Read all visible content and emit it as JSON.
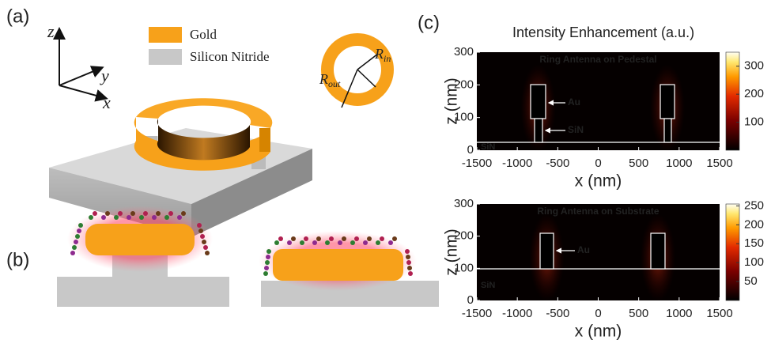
{
  "panels": {
    "a": {
      "label": "(a)",
      "axes": {
        "z": "z",
        "y": "y",
        "x": "x"
      },
      "legend": [
        {
          "name": "Gold",
          "color": "#f7a11a"
        },
        {
          "name": "Silicon Nitride",
          "color": "#c8c8c8"
        }
      ],
      "r_in": {
        "symbol": "R",
        "subscript": "in"
      },
      "r_out": {
        "symbol": "R",
        "subscript": "out"
      }
    },
    "b": {
      "label": "(b)"
    },
    "c": {
      "label": "(c)",
      "title": "Intensity Enhancement (a.u.)",
      "plots": [
        {
          "annotation": "Ring Antenna on Pedestal",
          "xlabel": "x (nm)",
          "ylabel": "z (nm)",
          "xlim": [
            -1500,
            1500
          ],
          "xticks": [
            -1500,
            -1000,
            -500,
            0,
            500,
            1000,
            1500
          ],
          "ylim": [
            0,
            300
          ],
          "yticks": [
            0,
            100,
            200,
            300
          ],
          "colorbar": {
            "lim": [
              0,
              350
            ],
            "ticks": [
              100,
              200,
              300
            ]
          },
          "labels": [
            "Au",
            "SiN"
          ],
          "substrate": "SiN"
        },
        {
          "annotation": "Ring Antenna on Substrate",
          "xlabel": "x (nm)",
          "ylabel": "z (nm)",
          "xlim": [
            -1500,
            1500
          ],
          "xticks": [
            -1500,
            -1000,
            -500,
            0,
            500,
            1000,
            1500
          ],
          "ylim": [
            0,
            300
          ],
          "yticks": [
            0,
            100,
            200,
            300
          ],
          "colorbar": {
            "lim": [
              0,
              255
            ],
            "ticks": [
              50,
              100,
              150,
              200,
              250
            ]
          },
          "labels": [
            "Au"
          ],
          "substrate": "SiN"
        }
      ]
    }
  }
}
